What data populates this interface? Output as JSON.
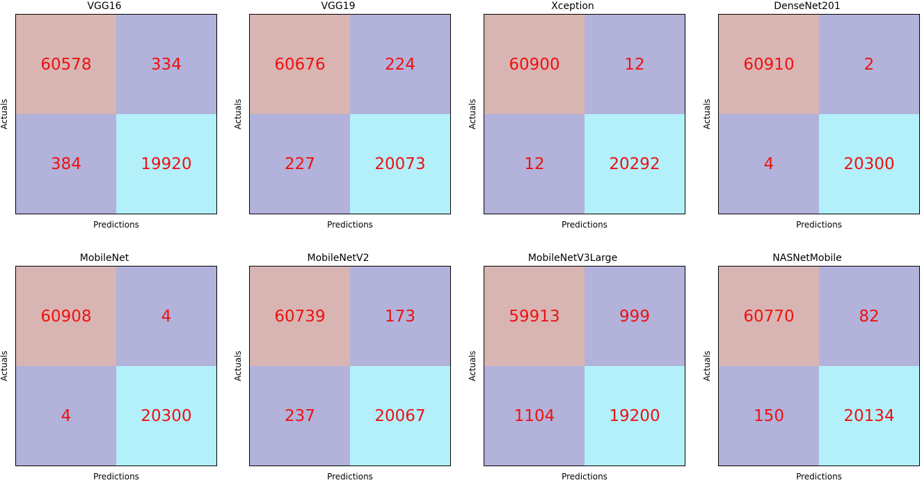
{
  "colors": {
    "tn": "#d8b5b3",
    "fp": "#b2b2da",
    "fn": "#b2b2da",
    "tp": "#b3f0fa",
    "value_text": "#ee1111"
  },
  "chart_data": [
    {
      "type": "heatmap",
      "title": "VGG16",
      "xlabel": "Predictions",
      "ylabel": "Actuals",
      "matrix": [
        [
          60578,
          334
        ],
        [
          384,
          19920
        ]
      ]
    },
    {
      "type": "heatmap",
      "title": "VGG19",
      "xlabel": "Predictions",
      "ylabel": "Actuals",
      "matrix": [
        [
          60676,
          224
        ],
        [
          227,
          20073
        ]
      ]
    },
    {
      "type": "heatmap",
      "title": "Xception",
      "xlabel": "Predictions",
      "ylabel": "Actuals",
      "matrix": [
        [
          60900,
          12
        ],
        [
          12,
          20292
        ]
      ]
    },
    {
      "type": "heatmap",
      "title": "DenseNet201",
      "xlabel": "Predictions",
      "ylabel": "Actuals",
      "matrix": [
        [
          60910,
          2
        ],
        [
          4,
          20300
        ]
      ]
    },
    {
      "type": "heatmap",
      "title": "MobileNet",
      "xlabel": "Predictions",
      "ylabel": "Actuals",
      "matrix": [
        [
          60908,
          4
        ],
        [
          4,
          20300
        ]
      ]
    },
    {
      "type": "heatmap",
      "title": "MobileNetV2",
      "xlabel": "Predictions",
      "ylabel": "Actuals",
      "matrix": [
        [
          60739,
          173
        ],
        [
          237,
          20067
        ]
      ]
    },
    {
      "type": "heatmap",
      "title": "MobileNetV3Large",
      "xlabel": "Predictions",
      "ylabel": "Actuals",
      "matrix": [
        [
          59913,
          999
        ],
        [
          1104,
          19200
        ]
      ]
    },
    {
      "type": "heatmap",
      "title": "NASNetMobile",
      "xlabel": "Predictions",
      "ylabel": "Actuals",
      "matrix": [
        [
          60770,
          82
        ],
        [
          150,
          20134
        ]
      ]
    }
  ]
}
